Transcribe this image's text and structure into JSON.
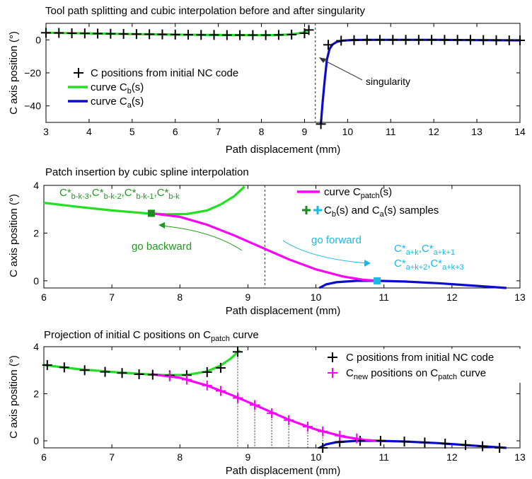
{
  "chart_data": [
    {
      "type": "line",
      "title": "Tool path splitting and cubic interpolation before and after singularity",
      "xlabel": "Path displacement (mm)",
      "ylabel": "C axis position (°)",
      "xlim": [
        3,
        14
      ],
      "ylim": [
        -50,
        10
      ],
      "xticks": [
        "3",
        "4",
        "5",
        "6",
        "7",
        "8",
        "9",
        "10",
        "11",
        "12",
        "13",
        "14"
      ],
      "yticks": [
        "0",
        "−20",
        "−40"
      ],
      "legend": {
        "placement": "left",
        "entries": [
          {
            "label": "C positions from initial NC code"
          },
          {
            "label_main": "curve C",
            "label_sub": "b",
            "label_tail": "(s)"
          },
          {
            "label_main": "curve C",
            "label_sub": "a",
            "label_tail": "(s)"
          }
        ]
      },
      "annotations": [
        {
          "text": "singularity"
        }
      ],
      "singularity_x": 9.25,
      "colors": {
        "cb": "#22e022",
        "ca": "#0b0bcc",
        "marker": "#000000"
      },
      "series": [
        {
          "name": "C positions from initial NC code",
          "role": "markers",
          "x": [
            3.0,
            3.3,
            3.6,
            3.9,
            4.2,
            4.5,
            4.8,
            5.1,
            5.4,
            5.7,
            6.0,
            6.3,
            6.6,
            6.9,
            7.2,
            7.5,
            7.8,
            8.1,
            8.4,
            8.7,
            9.0,
            9.1,
            9.38,
            9.55,
            9.85,
            10.15,
            10.45,
            10.75,
            11.05,
            11.35,
            11.65,
            11.95,
            12.25,
            12.55,
            12.85,
            13.15,
            13.45,
            13.75,
            14.0
          ],
          "y": [
            4.3,
            4.2,
            4.0,
            3.9,
            3.8,
            3.7,
            3.6,
            3.5,
            3.4,
            3.3,
            3.2,
            3.1,
            3.0,
            3.0,
            2.9,
            2.9,
            2.9,
            2.9,
            3.0,
            3.2,
            4.0,
            6.0,
            -51.0,
            -3.0,
            -0.5,
            -0.2,
            0.0,
            0.0,
            0.0,
            0.0,
            0.0,
            0.0,
            0.0,
            0.0,
            0.0,
            -0.1,
            -0.2,
            -0.3,
            -0.3
          ]
        },
        {
          "name": "curve Cb(s)",
          "role": "curve_b",
          "x": [
            3.0,
            3.5,
            4.0,
            4.5,
            5.0,
            5.5,
            6.0,
            6.5,
            7.0,
            7.5,
            8.0,
            8.3,
            8.6,
            8.8,
            9.0,
            9.1
          ],
          "y": [
            4.3,
            4.1,
            3.9,
            3.7,
            3.5,
            3.35,
            3.2,
            3.05,
            2.95,
            2.9,
            2.85,
            2.9,
            3.2,
            3.7,
            4.6,
            6.0
          ]
        },
        {
          "name": "curve Ca(s)",
          "role": "curve_a",
          "x": [
            9.38,
            9.42,
            9.47,
            9.52,
            9.58,
            9.65,
            9.75,
            9.9,
            10.1,
            10.4,
            11.0,
            12.0,
            13.0,
            14.0
          ],
          "y": [
            -51.0,
            -38.0,
            -24.0,
            -12.0,
            -5.5,
            -2.8,
            -1.2,
            -0.4,
            -0.1,
            0.0,
            0.0,
            0.0,
            -0.15,
            -0.3
          ]
        }
      ]
    },
    {
      "type": "line",
      "title": "Patch insertion by cubic spline interpolation",
      "xlabel": "Path displacement (mm)",
      "ylabel": "C axis position (°)",
      "xlim": [
        6,
        13
      ],
      "ylim": [
        -0.3,
        4
      ],
      "xticks": [
        "6",
        "7",
        "8",
        "9",
        "10",
        "11",
        "12",
        "13"
      ],
      "yticks": [
        "0",
        "2",
        "4"
      ],
      "legend": {
        "placement": "right",
        "entries": [
          {
            "label_main": "curve C",
            "label_sub": "patch",
            "label_tail": "(s)"
          },
          {
            "label_1": "C",
            "label_1_sub": "b",
            "label_2": "(s) and C",
            "label_2_sub": "a",
            "label_3": "(s) samples"
          }
        ]
      },
      "annotations": [
        {
          "text": "go backward",
          "color": "#1f9a1f"
        },
        {
          "text": "go forward",
          "color": "#1ab8e6"
        },
        {
          "text_green": [
            {
              "main": "C*",
              "sub": "b-k-3"
            },
            {
              "main": ",C*",
              "sub": "b-k-2"
            },
            {
              "main": ",C*",
              "sub": "b-k-1"
            },
            {
              "main": ",C*",
              "sub": "b-k"
            }
          ]
        },
        {
          "text_cyan_1": [
            {
              "main": "C*",
              "sub": "a+k"
            },
            {
              "main": ",C*",
              "sub": "a+k+1"
            }
          ]
        },
        {
          "text_cyan_2": [
            {
              "main": "C*",
              "sub": "a+k+2"
            },
            {
              "main": ",C*",
              "sub": "a+k+3"
            }
          ]
        }
      ],
      "singularity_x": 9.25,
      "colors": {
        "cb": "#22e022",
        "ca": "#0b0bcc",
        "patch": "#ff00ff",
        "cb_sample": "#1f8a1f",
        "ca_sample": "#1ab8e6"
      },
      "series": [
        {
          "name": "curve Cb(s)",
          "role": "curve_b",
          "x": [
            6.0,
            6.5,
            7.0,
            7.5,
            7.8,
            8.1,
            8.4,
            8.6,
            8.8,
            8.95
          ],
          "y": [
            3.27,
            3.1,
            2.95,
            2.83,
            2.79,
            2.8,
            2.95,
            3.2,
            3.55,
            3.95
          ]
        },
        {
          "name": "curve Ca(s)",
          "role": "curve_a",
          "x": [
            10.05,
            10.15,
            10.3,
            10.6,
            10.9,
            11.3,
            11.8,
            12.3,
            12.8
          ],
          "y": [
            -0.3,
            -0.15,
            -0.06,
            0.0,
            0.0,
            -0.03,
            -0.1,
            -0.2,
            -0.3
          ]
        },
        {
          "name": "curve Cpatch(s)",
          "role": "patch",
          "x": [
            7.58,
            8.0,
            8.4,
            8.8,
            9.2,
            9.6,
            10.0,
            10.4,
            10.7,
            10.9
          ],
          "y": [
            2.83,
            2.68,
            2.35,
            1.9,
            1.4,
            0.9,
            0.48,
            0.18,
            0.04,
            0.0
          ]
        },
        {
          "name": "Cb(s) samples",
          "role": "cb_sample",
          "x": [
            7.58
          ],
          "y": [
            2.83
          ]
        },
        {
          "name": "Ca(s) samples",
          "role": "ca_sample",
          "x": [
            10.9
          ],
          "y": [
            0.0
          ]
        }
      ]
    },
    {
      "type": "line",
      "title_main": "Projection of initial C positions on C",
      "title_sub": "patch",
      "title_tail": " curve",
      "xlabel": "Path displacement (mm)",
      "ylabel": "C axis position (°)",
      "xlim": [
        6,
        13
      ],
      "ylim": [
        -0.3,
        4
      ],
      "xticks": [
        "6",
        "7",
        "8",
        "9",
        "10",
        "11",
        "12",
        "13"
      ],
      "yticks": [
        "0",
        "2",
        "4"
      ],
      "legend": {
        "placement": "top-right",
        "entries": [
          {
            "label": "C positions from initial NC code"
          },
          {
            "label_main": "C",
            "label_sub": "new",
            "label_tail": " positions on C",
            "label_sub2": "patch",
            "label_tail2": " curve"
          }
        ]
      },
      "colors": {
        "cb": "#22e022",
        "ca": "#0b0bcc",
        "patch": "#ff00ff",
        "marker": "#000000",
        "new": "#ff00ff"
      },
      "series": [
        {
          "name": "curve Cb(s)",
          "role": "curve_b",
          "x": [
            6.0,
            6.5,
            7.0,
            7.5,
            7.8,
            8.1,
            8.4,
            8.6,
            8.75,
            8.88
          ],
          "y": [
            3.22,
            3.05,
            2.93,
            2.83,
            2.79,
            2.8,
            2.95,
            3.2,
            3.5,
            3.85
          ]
        },
        {
          "name": "curve Ca(s)",
          "role": "curve_a",
          "x": [
            10.05,
            10.15,
            10.3,
            10.6,
            10.9,
            11.3,
            11.8,
            12.3,
            12.8
          ],
          "y": [
            -0.3,
            -0.15,
            -0.06,
            0.0,
            0.0,
            -0.03,
            -0.1,
            -0.2,
            -0.3
          ]
        },
        {
          "name": "curve Cpatch(s)",
          "role": "patch",
          "x": [
            7.58,
            8.0,
            8.4,
            8.8,
            9.2,
            9.6,
            10.0,
            10.4,
            10.7,
            10.9
          ],
          "y": [
            2.83,
            2.68,
            2.35,
            1.9,
            1.4,
            0.9,
            0.48,
            0.18,
            0.04,
            0.0
          ]
        },
        {
          "name": "C positions from initial NC code",
          "role": "markers",
          "x": [
            6.05,
            6.3,
            6.6,
            6.9,
            7.15,
            7.4,
            7.6,
            7.85,
            8.1,
            8.4,
            8.6,
            8.85,
            10.1,
            10.35,
            10.65,
            10.95,
            11.3,
            11.6,
            11.9,
            12.2,
            12.45,
            12.7
          ],
          "y": [
            3.22,
            3.12,
            3.0,
            2.93,
            2.88,
            2.83,
            2.81,
            2.78,
            2.79,
            2.92,
            3.1,
            3.78,
            -0.3,
            -0.05,
            0.0,
            0.0,
            -0.03,
            -0.07,
            -0.12,
            -0.18,
            -0.23,
            -0.3
          ]
        },
        {
          "name": "Cnew positions on Cpatch curve",
          "role": "new_markers",
          "x": [
            7.85,
            8.1,
            8.4,
            8.6,
            8.85,
            9.1,
            9.35,
            9.6,
            9.88,
            10.1,
            10.35,
            10.6
          ],
          "y": [
            2.74,
            2.6,
            2.35,
            2.12,
            1.82,
            1.52,
            1.17,
            0.88,
            0.6,
            0.4,
            0.22,
            0.1
          ]
        },
        {
          "name": "projection guides",
          "role": "guides",
          "x": [
            8.85,
            9.1,
            9.35,
            9.6,
            9.88,
            10.1
          ],
          "y": [
            3.78,
            1.52,
            1.17,
            0.88,
            0.6,
            0.4
          ]
        }
      ]
    }
  ]
}
